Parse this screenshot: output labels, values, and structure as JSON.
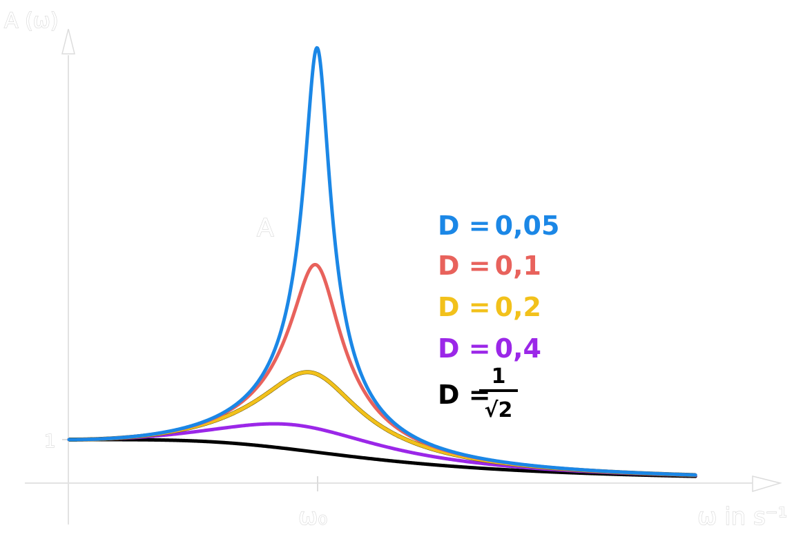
{
  "chart_data": {
    "type": "line",
    "title": "",
    "ylabel": "A (ω)",
    "xlabel": "ω in s⁻¹",
    "x_tick_label": "ω₀",
    "y_tick_label": "1",
    "peak_label": "A",
    "omega0": 1,
    "xlim": [
      0,
      3
    ],
    "ylim": [
      0,
      10.2
    ],
    "grid": false,
    "legend_position": "right",
    "series": [
      {
        "name": "D = 0,05",
        "label_prefix": "D =",
        "label_value": "0,05",
        "D": 0.05,
        "color": "#1b87e6"
      },
      {
        "name": "D = 0,1",
        "label_prefix": "D =",
        "label_value": "0,1",
        "D": 0.1,
        "color": "#e8625c"
      },
      {
        "name": "D = 0,2",
        "label_prefix": "D =",
        "label_value": "0,2",
        "D": 0.2,
        "color": "#f2c11b"
      },
      {
        "name": "D = 0,4",
        "label_prefix": "D =",
        "label_value": "0,4",
        "D": 0.4,
        "color": "#9b27e8"
      },
      {
        "name": "D = 1/√2",
        "label_prefix": "D =",
        "label_num": "1",
        "label_den": "√2",
        "D": 0.7071,
        "color": "#000000"
      }
    ]
  }
}
